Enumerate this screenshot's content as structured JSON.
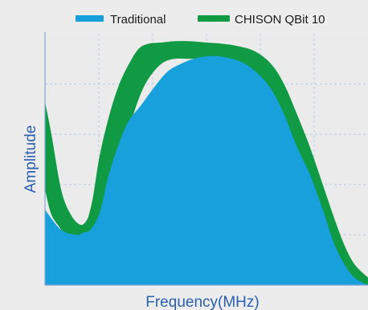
{
  "chart_data": {
    "type": "area",
    "title": "",
    "xlabel": "Frequency(MHz)",
    "ylabel": "Amplitude",
    "xlim": [
      0,
      100
    ],
    "ylim": [
      0,
      100
    ],
    "grid": true,
    "legend_position": "top",
    "series": [
      {
        "name": "Traditional",
        "color": "#17a0dc",
        "x": [
          0,
          5,
          10,
          12,
          14,
          17,
          20,
          25,
          30,
          34,
          38,
          42,
          46,
          50,
          54,
          58,
          62,
          66,
          70,
          74,
          78,
          82,
          86,
          90,
          95,
          100
        ],
        "values": [
          30,
          22,
          20,
          21,
          22,
          29,
          45,
          63,
          72,
          79,
          85,
          88,
          90,
          91,
          91,
          90,
          88,
          84,
          78,
          68,
          55,
          44,
          30,
          15,
          4,
          0
        ]
      },
      {
        "name": "CHISON QBit 10",
        "color": "#109a43",
        "x": [
          0,
          2,
          5,
          8,
          11,
          13,
          14,
          15,
          17,
          20,
          23,
          26,
          29,
          32,
          36,
          40,
          45,
          50,
          55,
          60,
          65,
          70,
          74,
          78,
          82,
          86,
          90,
          93,
          96,
          100
        ],
        "upper": [
          73,
          60,
          38,
          28,
          24,
          26,
          30,
          36,
          52,
          68,
          80,
          88,
          94,
          96,
          96.5,
          97,
          97,
          96.5,
          96,
          95,
          93,
          88,
          80,
          68,
          55,
          40,
          25,
          15,
          8,
          3
        ],
        "lower": [
          38,
          28,
          22,
          15,
          6,
          2,
          0,
          2,
          12,
          28,
          48,
          62,
          74,
          82,
          88,
          90,
          90,
          90,
          86,
          80,
          70,
          56,
          46,
          34,
          22,
          12,
          4,
          1,
          0,
          0
        ]
      }
    ]
  }
}
